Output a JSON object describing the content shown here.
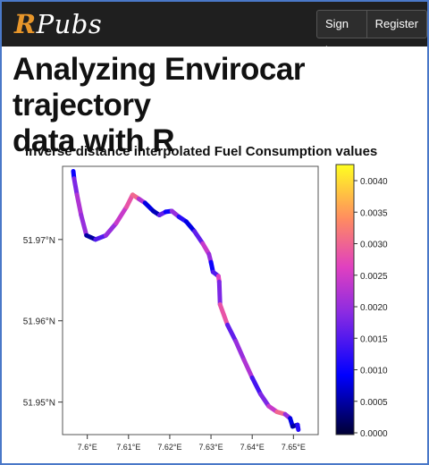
{
  "header": {
    "logo_r": "R",
    "logo_rest": "Pubs",
    "signin_label": "Sign in",
    "register_label": "Register"
  },
  "article": {
    "title_line1": "Analyzing Envirocar trajectory",
    "title_line2": "data with R"
  },
  "colors": {
    "topbar": "#1f1f1f",
    "logo_accent": "#e8962a",
    "frame_border": "#4a78c8"
  },
  "chart_data": {
    "type": "scatter",
    "title": "inverse distance interpolated Fuel Consumption values",
    "x_ticks": [
      "7.6°E",
      "7.61°E",
      "7.62°E",
      "7.63°E",
      "7.64°E",
      "7.65°E"
    ],
    "y_ticks": [
      "51.97°N",
      "51.96°N",
      "51.95°N"
    ],
    "xlim": [
      7.594,
      7.656
    ],
    "ylim": [
      51.946,
      51.979
    ],
    "colorbar": {
      "ticks": [
        "0.0040",
        "0.0035",
        "0.0030",
        "0.0025",
        "0.0020",
        "0.0015",
        "0.0010",
        "0.0005",
        "0.0000"
      ],
      "range": [
        0,
        0.0042
      ]
    },
    "track": [
      [
        7.5966,
        51.9784
      ],
      [
        7.5968,
        51.9775
      ],
      [
        7.5975,
        51.9755
      ],
      [
        7.5985,
        51.973
      ],
      [
        7.5998,
        51.9705
      ],
      [
        7.602,
        51.97
      ],
      [
        7.6045,
        51.9705
      ],
      [
        7.607,
        51.972
      ],
      [
        7.6095,
        51.974
      ],
      [
        7.611,
        51.9755
      ],
      [
        7.6125,
        51.975
      ],
      [
        7.614,
        51.9745
      ],
      [
        7.616,
        51.9735
      ],
      [
        7.6175,
        51.973
      ],
      [
        7.619,
        51.9734
      ],
      [
        7.6205,
        51.9735
      ],
      [
        7.6222,
        51.9728
      ],
      [
        7.624,
        51.9722
      ],
      [
        7.626,
        51.971
      ],
      [
        7.628,
        51.9695
      ],
      [
        7.6295,
        51.9682
      ],
      [
        7.63,
        51.9672
      ],
      [
        7.6305,
        51.966
      ],
      [
        7.6318,
        51.9655
      ],
      [
        7.632,
        51.9648
      ],
      [
        7.6322,
        51.962
      ],
      [
        7.634,
        51.9595
      ],
      [
        7.636,
        51.9575
      ],
      [
        7.638,
        51.9552
      ],
      [
        7.64,
        51.953
      ],
      [
        7.642,
        51.951
      ],
      [
        7.644,
        51.9495
      ],
      [
        7.646,
        51.9488
      ],
      [
        7.648,
        51.9485
      ],
      [
        7.6492,
        51.948
      ],
      [
        7.6498,
        51.947
      ],
      [
        7.651,
        51.9472
      ],
      [
        7.6512,
        51.9466
      ]
    ],
    "fuel": [
      0.001,
      0.0018,
      0.0022,
      0.002,
      0.0005,
      0.0015,
      0.002,
      0.0024,
      0.0028,
      0.003,
      0.0022,
      0.0008,
      0.0006,
      0.0016,
      0.001,
      0.002,
      0.0012,
      0.0008,
      0.0016,
      0.0024,
      0.002,
      0.001,
      0.0015,
      0.0026,
      0.0018,
      0.0028,
      0.0016,
      0.002,
      0.0022,
      0.0014,
      0.0018,
      0.0024,
      0.003,
      0.002,
      0.0008,
      0.0005,
      0.0012,
      0.0004
    ]
  }
}
